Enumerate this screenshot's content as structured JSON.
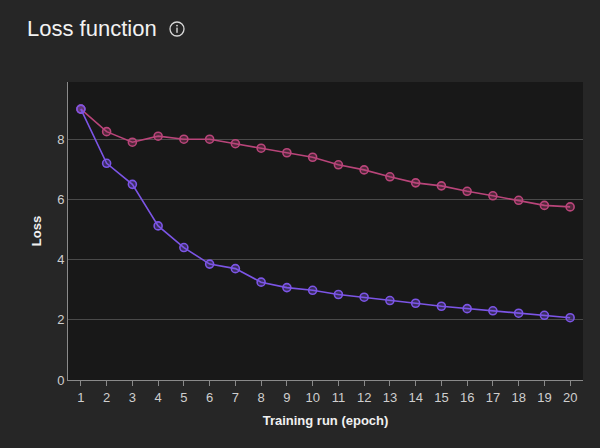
{
  "chart_data": {
    "type": "line",
    "title": "Loss function",
    "x_label": "Training run (epoch)",
    "y_label": "Loss",
    "x": [
      1,
      2,
      3,
      4,
      5,
      6,
      7,
      8,
      9,
      10,
      11,
      12,
      13,
      14,
      15,
      16,
      17,
      18,
      19,
      20
    ],
    "series": [
      {
        "color": "#b9457a",
        "marker": "circle",
        "line_style": "solid",
        "values": [
          9.0,
          8.25,
          7.9,
          8.1,
          8.0,
          8.0,
          7.85,
          7.7,
          7.55,
          7.4,
          7.15,
          6.98,
          6.75,
          6.55,
          6.45,
          6.27,
          6.12,
          5.97,
          5.8,
          5.75
        ]
      },
      {
        "color": "#7c55e6",
        "marker": "circle",
        "line_style": "solid",
        "values": [
          9.0,
          7.2,
          6.5,
          5.12,
          4.4,
          3.85,
          3.7,
          3.25,
          3.07,
          2.98,
          2.84,
          2.75,
          2.64,
          2.55,
          2.45,
          2.37,
          2.3,
          2.22,
          2.15,
          2.07
        ]
      }
    ],
    "xlim": [
      0.5,
      20.5
    ],
    "xticks": [
      1,
      2,
      3,
      4,
      5,
      6,
      7,
      8,
      9,
      10,
      11,
      12,
      13,
      14,
      15,
      16,
      17,
      18,
      19,
      20
    ],
    "ylim": [
      0,
      9.9
    ],
    "yticks": [
      0,
      2,
      4,
      6,
      8
    ],
    "grid": true
  }
}
